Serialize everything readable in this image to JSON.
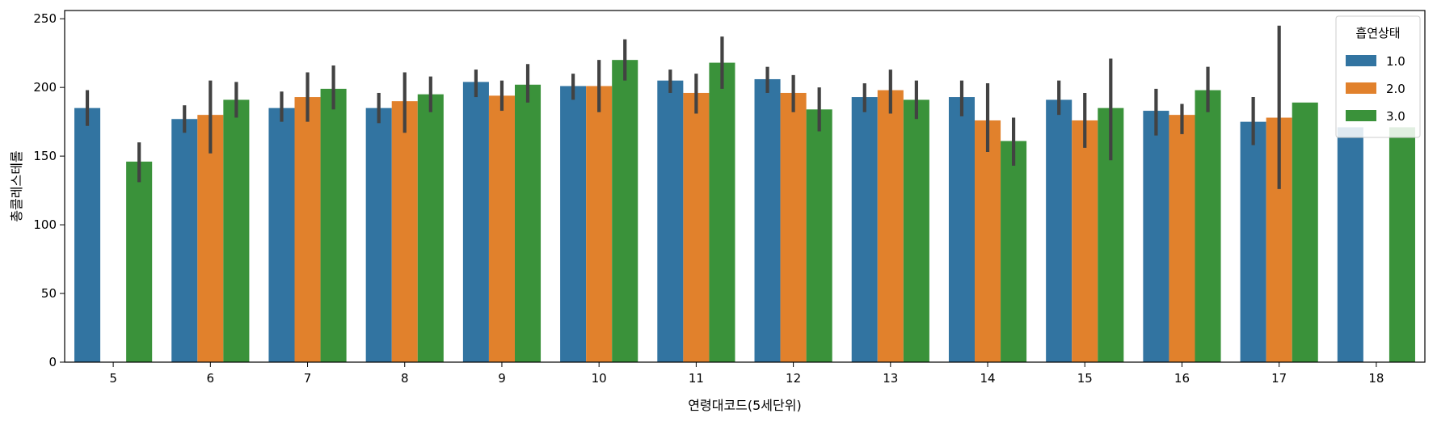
{
  "chart_data": {
    "type": "bar",
    "xlabel": "연령대코드(5세단위)",
    "ylabel": "총콜레스테롤",
    "ylim": [
      0,
      256
    ],
    "yticks": [
      0,
      50,
      100,
      150,
      200,
      250
    ],
    "categories": [
      "5",
      "6",
      "7",
      "8",
      "9",
      "10",
      "11",
      "12",
      "13",
      "14",
      "15",
      "16",
      "17",
      "18"
    ],
    "legend": {
      "title": "흡연상태",
      "placement": "top-right"
    },
    "grid": false,
    "series": [
      {
        "name": "1.0",
        "color": "#3274a1",
        "values": [
          185,
          177,
          185,
          185,
          204,
          201,
          205,
          206,
          193,
          193,
          191,
          183,
          175,
          171
        ],
        "ci_low": [
          172,
          167,
          175,
          174,
          193,
          191,
          196,
          196,
          182,
          179,
          180,
          165,
          158,
          null
        ],
        "ci_high": [
          198,
          187,
          197,
          196,
          213,
          210,
          213,
          215,
          203,
          205,
          205,
          199,
          193,
          null
        ]
      },
      {
        "name": "2.0",
        "color": "#e1812c",
        "values": [
          null,
          180,
          193,
          190,
          194,
          201,
          196,
          196,
          198,
          176,
          176,
          180,
          178,
          null
        ],
        "ci_low": [
          null,
          152,
          175,
          167,
          183,
          182,
          181,
          182,
          181,
          153,
          156,
          166,
          126,
          null
        ],
        "ci_high": [
          null,
          205,
          211,
          211,
          205,
          220,
          210,
          209,
          213,
          203,
          196,
          188,
          245,
          null
        ]
      },
      {
        "name": "3.0",
        "color": "#3a923a",
        "values": [
          146,
          191,
          199,
          195,
          202,
          220,
          218,
          184,
          191,
          161,
          185,
          198,
          189,
          171
        ],
        "ci_low": [
          131,
          178,
          184,
          182,
          189,
          205,
          199,
          168,
          177,
          143,
          147,
          182,
          null,
          null
        ],
        "ci_high": [
          160,
          204,
          216,
          208,
          217,
          235,
          237,
          200,
          205,
          178,
          221,
          215,
          null,
          null
        ]
      }
    ]
  }
}
